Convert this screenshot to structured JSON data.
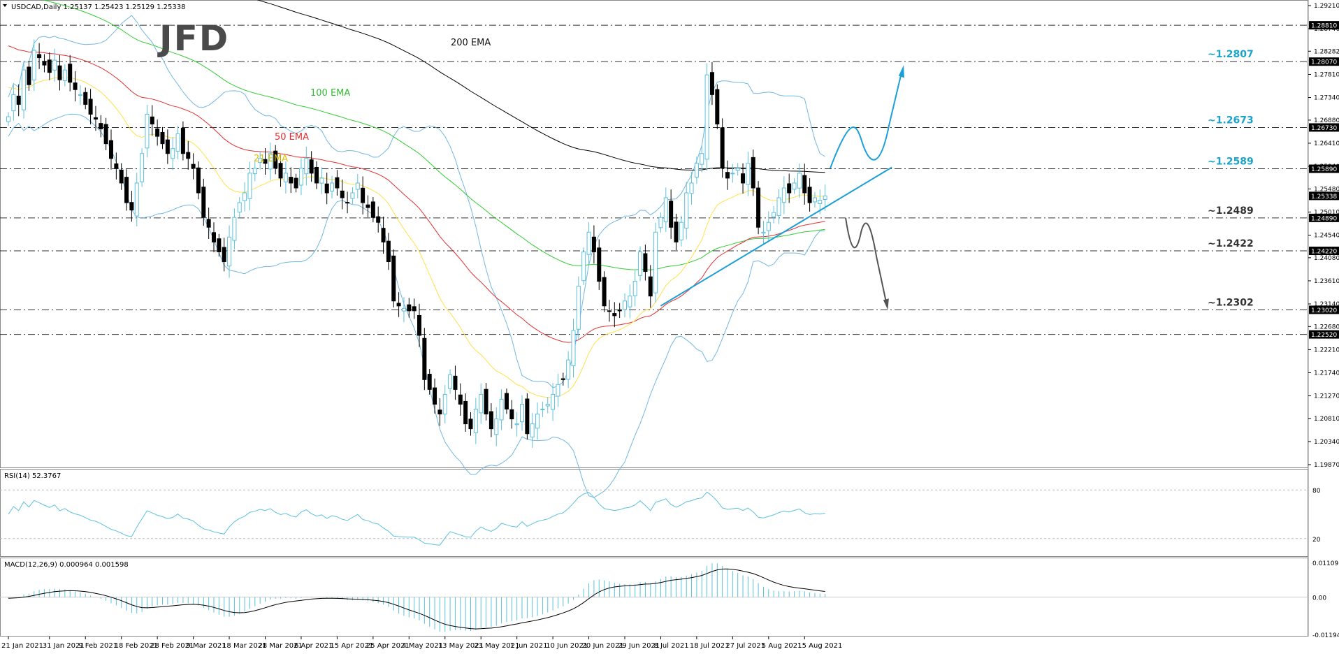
{
  "chart_data": {
    "type": "candlestick",
    "header": "USDCAD,Daily  1.25137 1.25423 1.25129 1.25338",
    "logo": "JFD",
    "colors": {
      "bull": "#5bc0de",
      "bear": "#000000",
      "ema21": "#ffe14d",
      "ema50": "#e03030",
      "ema100": "#33cc33",
      "ema200": "#000000",
      "bands": "#72b7e0",
      "trend": "#1a9fd6",
      "level_text": "#1ba3c9",
      "level_text_dark": "#333333",
      "badge_bg": "#000000",
      "badge_text": "#ffffff"
    },
    "price_axis": {
      "min": 1.1987,
      "max": 1.2921,
      "ticks": [
        "1.29210",
        "1.28740",
        "1.28282",
        "1.27810",
        "1.27340",
        "1.26880",
        "1.26410",
        "1.25940",
        "1.25480",
        "1.25010",
        "1.24540",
        "1.24080",
        "1.23610",
        "1.23140",
        "1.22680",
        "1.22210",
        "1.21740",
        "1.21270",
        "1.20810",
        "1.20340",
        "1.19870"
      ],
      "badges": [
        "1.28810",
        "1.28070",
        "1.26730",
        "1.25890",
        "1.25338",
        "1.24890",
        "1.24220",
        "1.23020",
        "1.22520"
      ]
    },
    "levels": [
      {
        "value": 1.2881,
        "label": ""
      },
      {
        "value": 1.2807,
        "label": "~1.2807",
        "dark": false
      },
      {
        "value": 1.2673,
        "label": "~1.2673",
        "dark": false
      },
      {
        "value": 1.2589,
        "label": "~1.2589",
        "dark": false
      },
      {
        "value": 1.2489,
        "label": "~1.2489",
        "dark": true
      },
      {
        "value": 1.2422,
        "label": "~1.2422",
        "dark": true
      },
      {
        "value": 1.2302,
        "label": "~1.2302",
        "dark": true
      },
      {
        "value": 1.2252,
        "label": ""
      }
    ],
    "date_labels": [
      {
        "i": 0,
        "label": "21 Jan 2021"
      },
      {
        "i": 8,
        "label": "31 Jan 2021"
      },
      {
        "i": 15,
        "label": "9 Feb 2021"
      },
      {
        "i": 22,
        "label": "18 Feb 2021"
      },
      {
        "i": 29,
        "label": "28 Feb 2021"
      },
      {
        "i": 36,
        "label": "9 Mar 2021"
      },
      {
        "i": 43,
        "label": "18 Mar 2021"
      },
      {
        "i": 50,
        "label": "28 Mar 2021"
      },
      {
        "i": 57,
        "label": "6 Apr 2021"
      },
      {
        "i": 64,
        "label": "15 Apr 2021"
      },
      {
        "i": 71,
        "label": "25 Apr 2021"
      },
      {
        "i": 78,
        "label": "4 May 2021"
      },
      {
        "i": 85,
        "label": "13 May 2021"
      },
      {
        "i": 92,
        "label": "23 May 2021"
      },
      {
        "i": 99,
        "label": "1 Jun 2021"
      },
      {
        "i": 106,
        "label": "10 Jun 2021"
      },
      {
        "i": 113,
        "label": "20 Jun 2021"
      },
      {
        "i": 120,
        "label": "29 Jun 2021"
      },
      {
        "i": 127,
        "label": "8 Jul 2021"
      },
      {
        "i": 134,
        "label": "18 Jul 2021"
      },
      {
        "i": 141,
        "label": "27 Jul 2021"
      },
      {
        "i": 148,
        "label": "5 Aug 2021"
      },
      {
        "i": 155,
        "label": "15 Aug 2021"
      }
    ],
    "closes": [
      1.2695,
      1.274,
      1.272,
      1.279,
      1.276,
      1.283,
      1.2815,
      1.28,
      1.2785,
      1.281,
      1.277,
      1.279,
      1.2765,
      1.275,
      1.274,
      1.272,
      1.27,
      1.269,
      1.267,
      1.264,
      1.261,
      1.259,
      1.256,
      1.252,
      1.2505,
      1.256,
      1.262,
      1.27,
      1.268,
      1.2655,
      1.264,
      1.262,
      1.263,
      1.266,
      1.262,
      1.261,
      1.259,
      1.254,
      1.249,
      1.247,
      1.244,
      1.242,
      1.24,
      1.245,
      1.249,
      1.252,
      1.254,
      1.258,
      1.259,
      1.261,
      1.26,
      1.262,
      1.259,
      1.257,
      1.258,
      1.256,
      1.255,
      1.259,
      1.261,
      1.258,
      1.256,
      1.257,
      1.254,
      1.256,
      1.255,
      1.253,
      1.252,
      1.254,
      1.256,
      1.252,
      1.251,
      1.249,
      1.248,
      1.244,
      1.24,
      1.232,
      1.231,
      1.2305,
      1.23,
      1.23,
      1.225,
      1.216,
      1.214,
      1.211,
      1.209,
      1.213,
      1.217,
      1.214,
      1.211,
      1.207,
      1.206,
      1.21,
      1.213,
      1.209,
      1.206,
      1.208,
      1.212,
      1.21,
      1.208,
      1.207,
      1.211,
      1.205,
      1.207,
      1.209,
      1.21,
      1.211,
      1.213,
      1.215,
      1.216,
      1.22,
      1.226,
      1.235,
      1.242,
      1.246,
      1.242,
      1.236,
      1.231,
      1.23,
      1.229,
      1.23,
      1.232,
      1.233,
      1.236,
      1.242,
      1.238,
      1.233,
      1.246,
      1.249,
      1.253,
      1.247,
      1.244,
      1.248,
      1.254,
      1.256,
      1.26,
      1.262,
      1.278,
      1.274,
      1.268,
      1.259,
      1.257,
      1.258,
      1.259,
      1.256,
      1.26,
      1.255,
      1.247,
      1.246,
      1.248,
      1.25,
      1.253,
      1.255,
      1.254,
      1.256,
      1.258,
      1.254,
      1.252,
      1.253,
      1.2525,
      1.25338
    ],
    "macd_cap_index": 155,
    "rsi": {
      "label": "RSI(14) 52.3767",
      "min": 0,
      "max": 100,
      "ticks": [
        80,
        20
      ],
      "last": 52.3767
    },
    "macd": {
      "label": "MACD(12,26,9) 0.000964 0.001598",
      "min": -0.011942,
      "max": 0.011091,
      "ticks": [
        "0.011091",
        "0.00",
        "-0.011942"
      ]
    },
    "ema_labels": {
      "ema200": "200 EMA",
      "ema100": "100 EMA",
      "ema50": "50 EMA",
      "ema21": "21 EMA"
    }
  }
}
